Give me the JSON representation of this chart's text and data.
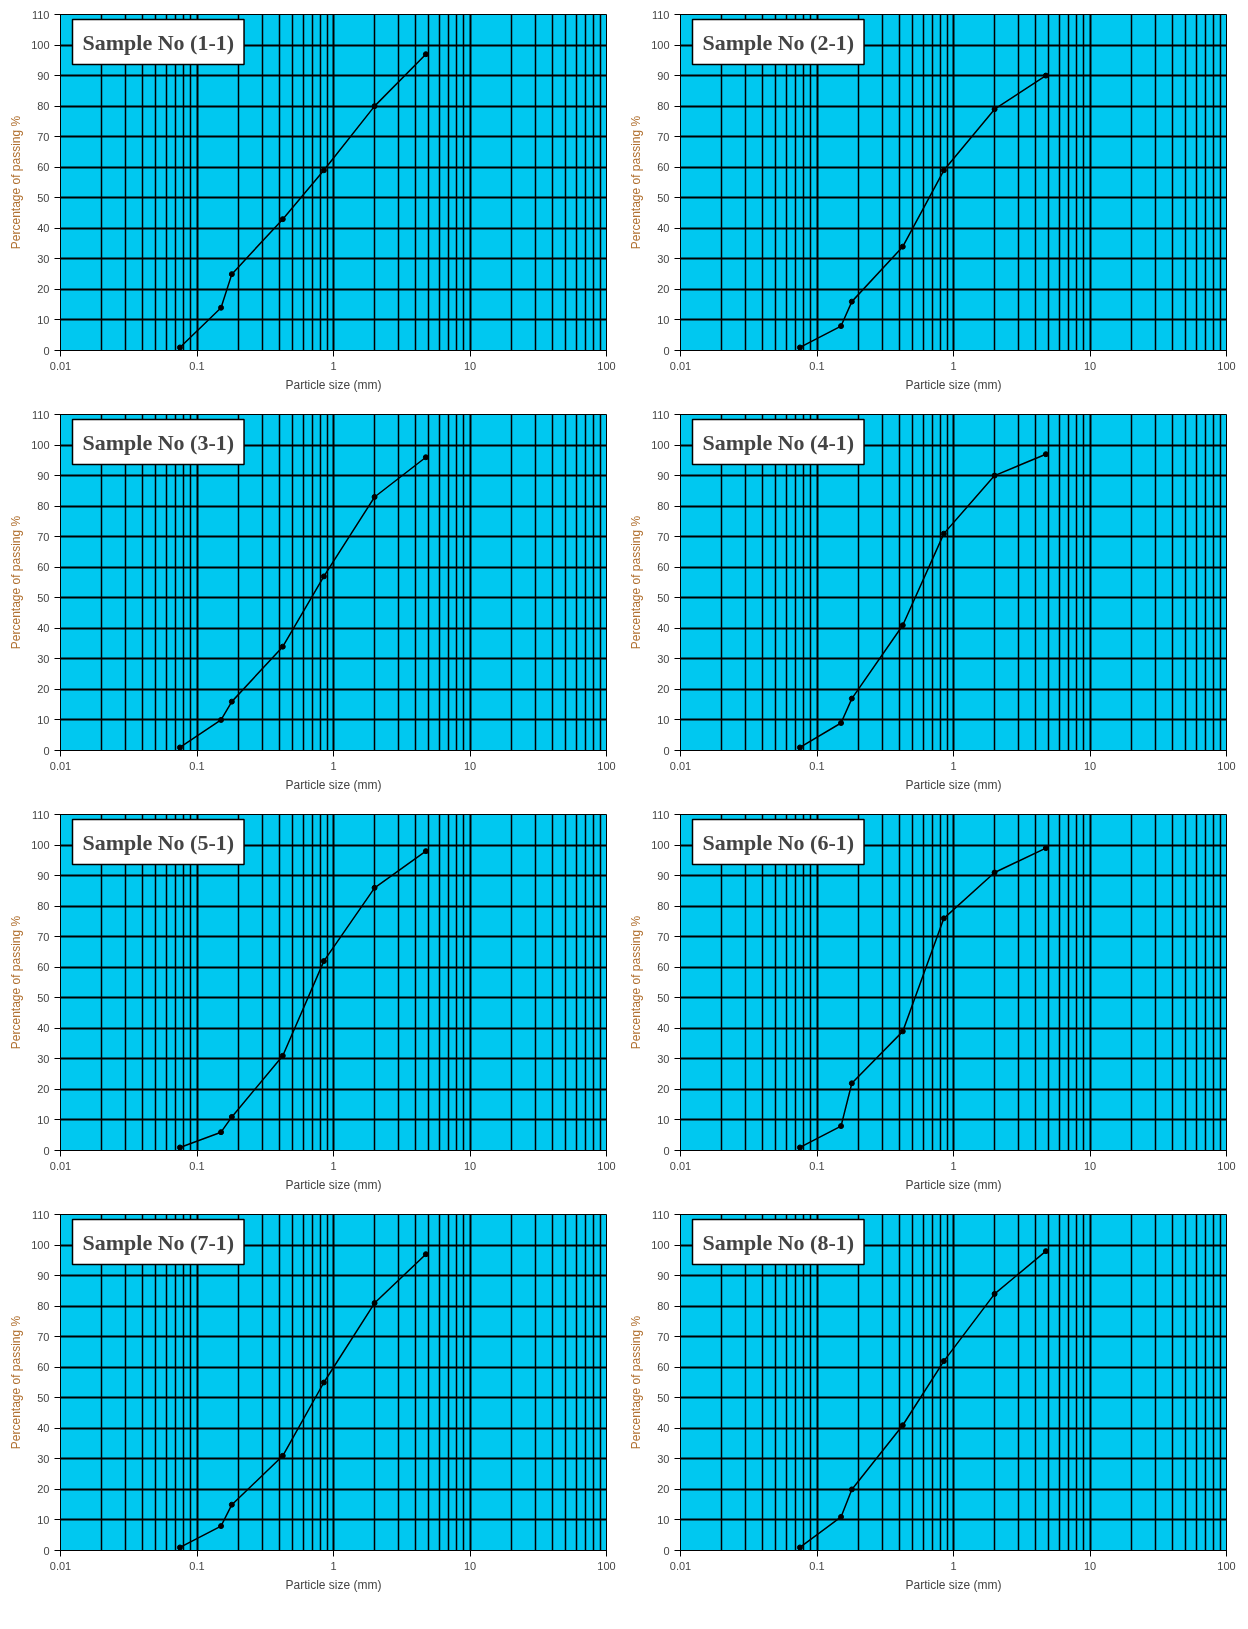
{
  "chart_data": [
    {
      "type": "line",
      "title": "Sample No (1-1)",
      "xlabel": "Particle size (mm)",
      "ylabel": "Percentage of passing %",
      "x": [
        0.075,
        0.15,
        0.18,
        0.425,
        0.85,
        2,
        4.75
      ],
      "values": [
        1,
        14,
        25,
        43,
        59,
        80,
        97
      ],
      "color": "#000000",
      "xlim": [
        0.01,
        100
      ],
      "ylim": [
        0,
        110
      ],
      "xticks": [
        0.01,
        0.1,
        1,
        10,
        100
      ],
      "yticks": [
        0,
        10,
        20,
        30,
        40,
        50,
        60,
        70,
        80,
        90,
        100,
        110
      ],
      "log": "x",
      "grid": true,
      "marker": "circle"
    },
    {
      "type": "line",
      "title": "Sample No (2-1)",
      "xlabel": "Particle size (mm)",
      "ylabel": "Percentage of passing %",
      "x": [
        0.075,
        0.15,
        0.18,
        0.425,
        0.85,
        2,
        4.75
      ],
      "values": [
        1,
        8,
        16,
        34,
        59,
        79,
        90
      ],
      "color": "#000000",
      "xlim": [
        0.01,
        100
      ],
      "ylim": [
        0,
        110
      ],
      "xticks": [
        0.01,
        0.1,
        1,
        10,
        100
      ],
      "yticks": [
        0,
        10,
        20,
        30,
        40,
        50,
        60,
        70,
        80,
        90,
        100,
        110
      ],
      "log": "x",
      "grid": true,
      "marker": "circle"
    },
    {
      "type": "line",
      "title": "Sample No (3-1)",
      "xlabel": "Particle size (mm)",
      "ylabel": "Percentage of passing %",
      "x": [
        0.075,
        0.15,
        0.18,
        0.425,
        0.85,
        2,
        4.75
      ],
      "values": [
        1,
        10,
        16,
        34,
        57,
        83,
        96
      ],
      "color": "#000000",
      "xlim": [
        0.01,
        100
      ],
      "ylim": [
        0,
        110
      ],
      "xticks": [
        0.01,
        0.1,
        1,
        10,
        100
      ],
      "yticks": [
        0,
        10,
        20,
        30,
        40,
        50,
        60,
        70,
        80,
        90,
        100,
        110
      ],
      "log": "x",
      "grid": true,
      "marker": "circle"
    },
    {
      "type": "line",
      "title": "Sample No (4-1)",
      "xlabel": "Particle size (mm)",
      "ylabel": "Percentage of passing %",
      "x": [
        0.075,
        0.15,
        0.18,
        0.425,
        0.85,
        2,
        4.75
      ],
      "values": [
        1,
        9,
        17,
        41,
        71,
        90,
        97
      ],
      "color": "#000000",
      "xlim": [
        0.01,
        100
      ],
      "ylim": [
        0,
        110
      ],
      "xticks": [
        0.01,
        0.1,
        1,
        10,
        100
      ],
      "yticks": [
        0,
        10,
        20,
        30,
        40,
        50,
        60,
        70,
        80,
        90,
        100,
        110
      ],
      "log": "x",
      "grid": true,
      "marker": "circle"
    },
    {
      "type": "line",
      "title": "Sample No (5-1)",
      "xlabel": "Particle size (mm)",
      "ylabel": "Percentage of passing %",
      "x": [
        0.075,
        0.15,
        0.18,
        0.425,
        0.85,
        2,
        4.75
      ],
      "values": [
        1,
        6,
        11,
        31,
        62,
        86,
        98
      ],
      "color": "#000000",
      "xlim": [
        0.01,
        100
      ],
      "ylim": [
        0,
        110
      ],
      "xticks": [
        0.01,
        0.1,
        1,
        10,
        100
      ],
      "yticks": [
        0,
        10,
        20,
        30,
        40,
        50,
        60,
        70,
        80,
        90,
        100,
        110
      ],
      "log": "x",
      "grid": true,
      "marker": "circle"
    },
    {
      "type": "line",
      "title": "Sample No (6-1)",
      "xlabel": "Particle size (mm)",
      "ylabel": "Percentage of passing %",
      "x": [
        0.075,
        0.15,
        0.18,
        0.425,
        0.85,
        2,
        4.75
      ],
      "values": [
        1,
        8,
        22,
        39,
        76,
        91,
        99
      ],
      "color": "#000000",
      "xlim": [
        0.01,
        100
      ],
      "ylim": [
        0,
        110
      ],
      "xticks": [
        0.01,
        0.1,
        1,
        10,
        100
      ],
      "yticks": [
        0,
        10,
        20,
        30,
        40,
        50,
        60,
        70,
        80,
        90,
        100,
        110
      ],
      "log": "x",
      "grid": true,
      "marker": "circle"
    },
    {
      "type": "line",
      "title": "Sample No (7-1)",
      "xlabel": "Particle size (mm)",
      "ylabel": "Percentage of passing %",
      "x": [
        0.075,
        0.15,
        0.18,
        0.425,
        0.85,
        2,
        4.75
      ],
      "values": [
        1,
        8,
        15,
        31,
        55,
        81,
        97
      ],
      "color": "#000000",
      "xlim": [
        0.01,
        100
      ],
      "ylim": [
        0,
        110
      ],
      "xticks": [
        0.01,
        0.1,
        1,
        10,
        100
      ],
      "yticks": [
        0,
        10,
        20,
        30,
        40,
        50,
        60,
        70,
        80,
        90,
        100,
        110
      ],
      "log": "x",
      "grid": true,
      "marker": "circle"
    },
    {
      "type": "line",
      "title": "Sample No (8-1)",
      "xlabel": "Particle size (mm)",
      "ylabel": "Percentage of passing %",
      "x": [
        0.075,
        0.15,
        0.18,
        0.425,
        0.85,
        2,
        4.75
      ],
      "values": [
        1,
        11,
        20,
        41,
        62,
        84,
        98
      ],
      "color": "#000000",
      "xlim": [
        0.01,
        100
      ],
      "ylim": [
        0,
        110
      ],
      "xticks": [
        0.01,
        0.1,
        1,
        10,
        100
      ],
      "yticks": [
        0,
        10,
        20,
        30,
        40,
        50,
        60,
        70,
        80,
        90,
        100,
        110
      ],
      "log": "x",
      "grid": true,
      "marker": "circle"
    }
  ]
}
